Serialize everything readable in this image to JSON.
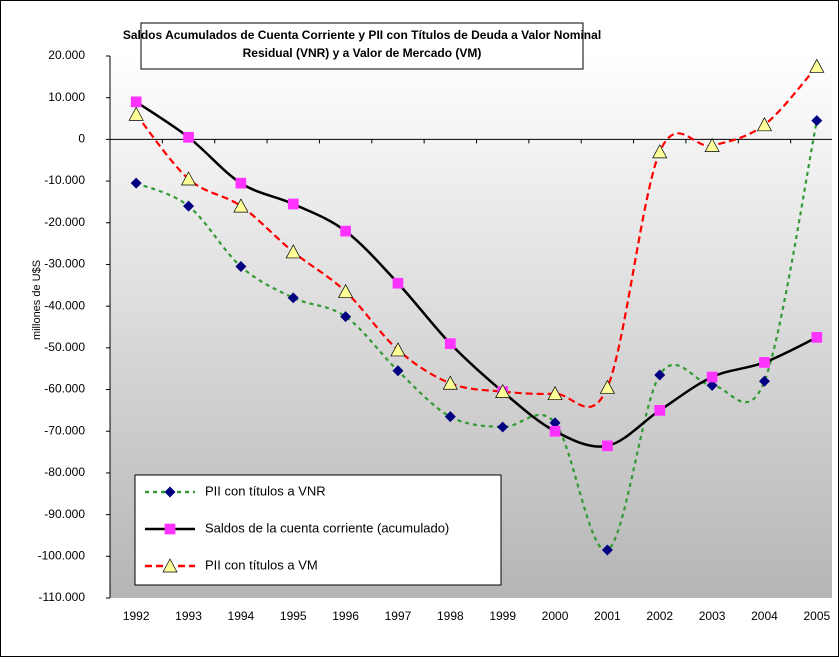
{
  "chart_data": {
    "type": "line",
    "title": "Saldos Acumulados de Cuenta Corriente y  PII con Títulos de Deuda a Valor Nominal Residual (VNR) y a Valor de Mercado (VM)",
    "y_label": "millones de U$S",
    "categories": [
      "1992",
      "1993",
      "1994",
      "1995",
      "1996",
      "1997",
      "1998",
      "1999",
      "2000",
      "2001",
      "2002",
      "2003",
      "2004",
      "2005"
    ],
    "series": [
      {
        "name": "PII con títulos a VNR",
        "color": "#339933",
        "marker_color": "#000080",
        "marker": "diamond",
        "dash": "4,4",
        "values": [
          -10500,
          -16000,
          -30500,
          -38000,
          -42500,
          -55500,
          -66500,
          -69000,
          -68000,
          -98500,
          -56500,
          -59000,
          -58000,
          4500
        ]
      },
      {
        "name": "Saldos de la cuenta corriente (acumulado)",
        "color": "#000000",
        "marker_color": "#ff33ff",
        "marker": "square",
        "dash": "none",
        "values": [
          9000,
          500,
          -10500,
          -15500,
          -22000,
          -34500,
          -49000,
          -60500,
          -70000,
          -73500,
          -65000,
          -57000,
          -53500,
          -47500
        ]
      },
      {
        "name": "PII con títulos a VM",
        "color": "#ff0000",
        "marker_color": "#ffff99",
        "marker": "triangle",
        "dash": "7,4",
        "values": [
          6000,
          -9500,
          -16000,
          -27000,
          -36500,
          -50500,
          -58500,
          -60500,
          -61000,
          -59500,
          -3000,
          -1500,
          3500,
          17500
        ]
      }
    ],
    "ylim": [
      -110000,
      20000
    ],
    "yticks": [
      {
        "value": 20000,
        "label": "20.000"
      },
      {
        "value": 10000,
        "label": "10.000"
      },
      0,
      {
        "value": -10000,
        "label": "-10.000"
      },
      {
        "value": -20000,
        "label": "-20.000"
      },
      {
        "value": -30000,
        "label": "-30.000"
      },
      {
        "value": -40000,
        "label": "-40.000"
      },
      {
        "value": -50000,
        "label": "-50.000"
      },
      {
        "value": -60000,
        "label": "-60.000"
      },
      {
        "value": -70000,
        "label": "-70.000"
      },
      {
        "value": -80000,
        "label": "-80.000"
      },
      {
        "value": -90000,
        "label": "-90.000"
      },
      {
        "value": -100000,
        "label": "-100.000"
      },
      {
        "value": -110000,
        "label": "-110.000"
      }
    ],
    "smooth": true
  }
}
